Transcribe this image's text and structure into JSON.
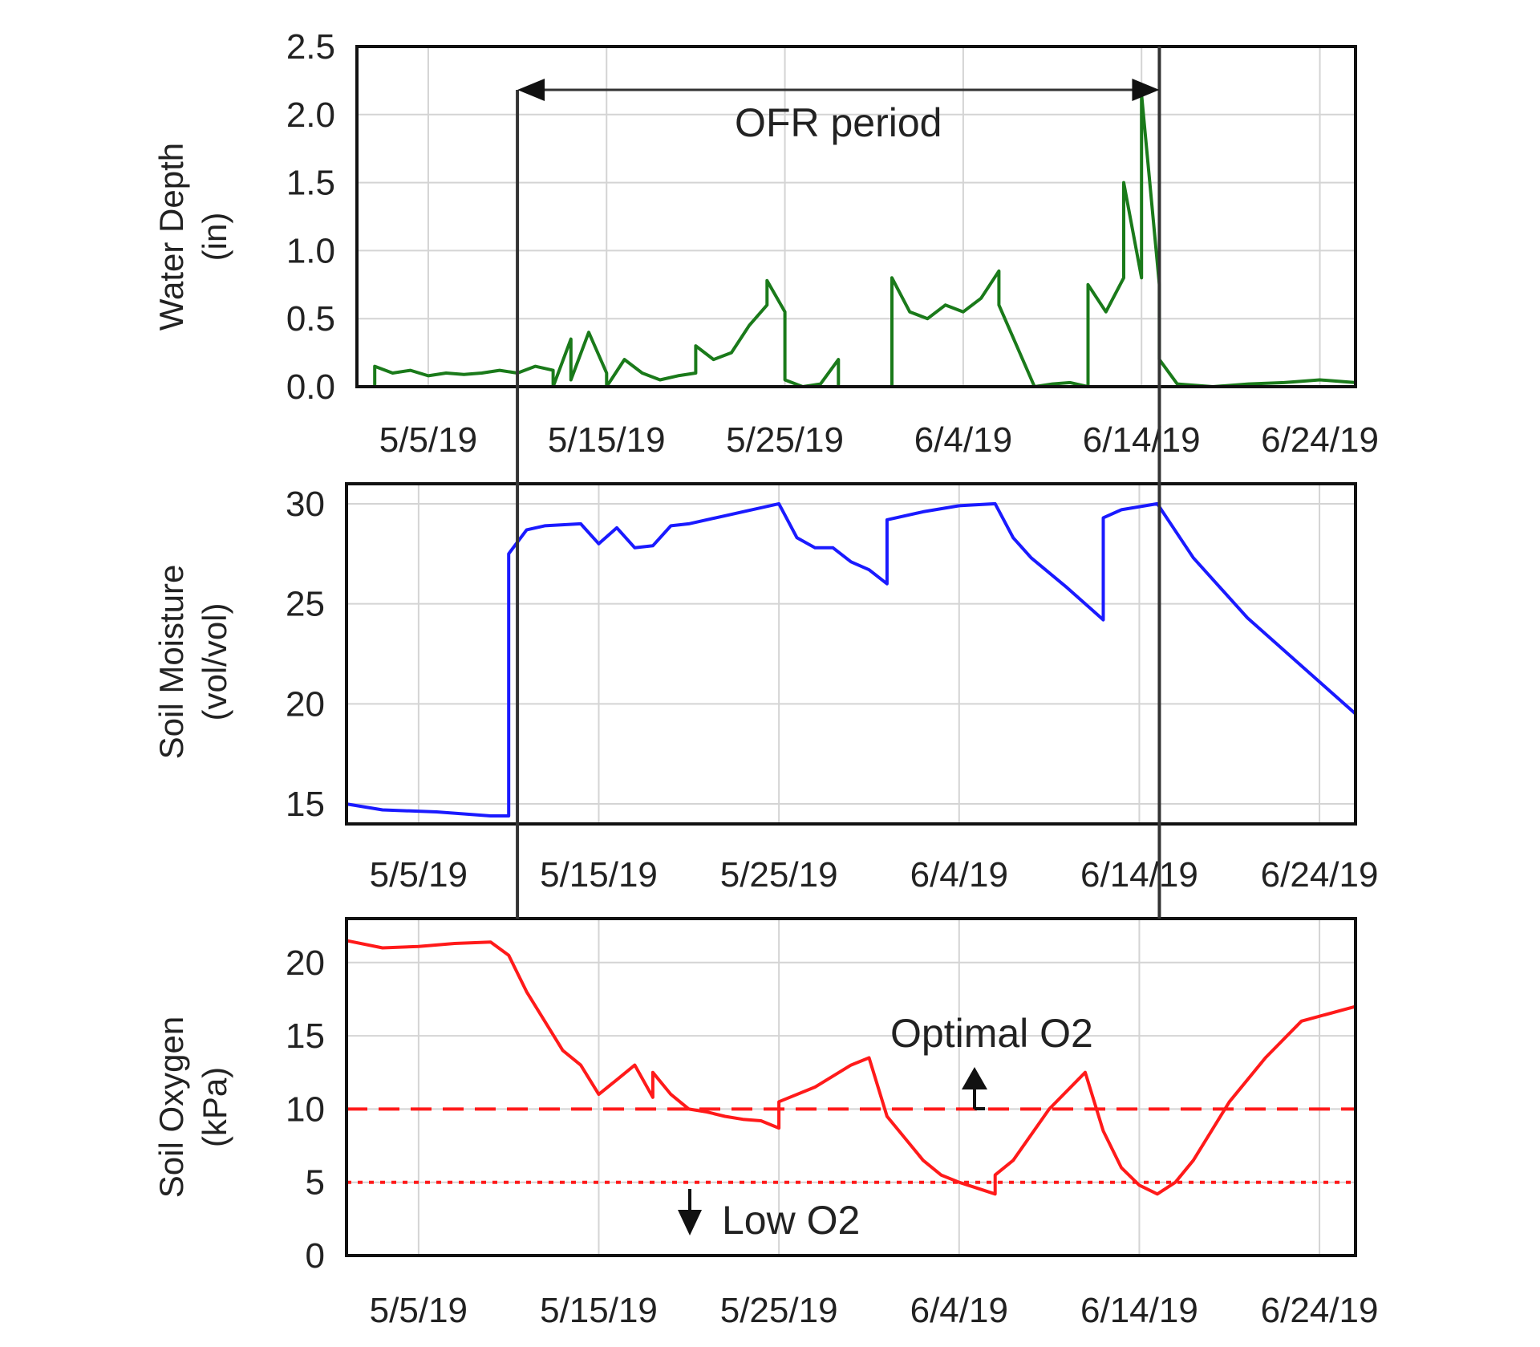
{
  "figure": {
    "x_tick_labels": [
      "5/5/19",
      "5/15/19",
      "5/25/19",
      "6/4/19",
      "6/14/19",
      "6/24/19"
    ],
    "ofr_label": "OFR period",
    "optimal_label": "Optimal O2",
    "low_label": "Low O2",
    "ofr_start": "2019-05-10",
    "ofr_end": "2019-06-15"
  },
  "chart_data": [
    {
      "type": "line",
      "ylabel_line1": "Water Depth",
      "ylabel_line2": "(in)",
      "ylim": [
        0,
        2.5
      ],
      "yticks": [
        0.0,
        0.5,
        1.0,
        1.5,
        2.0,
        2.5
      ],
      "ytick_labels": [
        "0.0",
        "0.5",
        "1.0",
        "1.5",
        "2.0",
        "2.5"
      ],
      "xlim": [
        "2019-05-01",
        "2019-06-26"
      ],
      "grid": true,
      "color": "#1a7a1a",
      "series": [
        {
          "x": [
            "2019-05-02",
            "2019-05-02",
            "2019-05-03",
            "2019-05-04",
            "2019-05-05",
            "2019-05-06",
            "2019-05-07",
            "2019-05-08",
            "2019-05-09",
            "2019-05-10",
            "2019-05-11",
            "2019-05-12",
            "2019-05-12",
            "2019-05-13",
            "2019-05-13",
            "2019-05-14",
            "2019-05-15",
            "2019-05-15",
            "2019-05-16",
            "2019-05-17",
            "2019-05-18",
            "2019-05-19",
            "2019-05-20",
            "2019-05-20",
            "2019-05-21",
            "2019-05-22",
            "2019-05-23",
            "2019-05-24",
            "2019-05-24",
            "2019-05-25",
            "2019-05-25",
            "2019-05-26",
            "2019-05-27",
            "2019-05-28",
            "2019-05-28",
            "2019-05-29",
            "2019-05-30",
            "2019-05-31",
            "2019-05-31",
            "2019-06-01",
            "2019-06-02",
            "2019-06-03",
            "2019-06-04",
            "2019-06-05",
            "2019-06-06",
            "2019-06-06",
            "2019-06-07",
            "2019-06-08",
            "2019-06-09",
            "2019-06-10",
            "2019-06-11",
            "2019-06-11",
            "2019-06-12",
            "2019-06-13",
            "2019-06-13",
            "2019-06-14",
            "2019-06-14",
            "2019-06-15",
            "2019-06-15",
            "2019-06-16",
            "2019-06-18",
            "2019-06-20",
            "2019-06-22",
            "2019-06-24",
            "2019-06-26"
          ],
          "y": [
            0.0,
            0.15,
            0.1,
            0.12,
            0.08,
            0.1,
            0.09,
            0.1,
            0.12,
            0.1,
            0.15,
            0.12,
            0.0,
            0.35,
            0.05,
            0.4,
            0.1,
            0.0,
            0.2,
            0.1,
            0.05,
            0.08,
            0.1,
            0.3,
            0.2,
            0.25,
            0.45,
            0.6,
            0.78,
            0.55,
            0.05,
            0.0,
            0.02,
            0.2,
            0.0,
            0.0,
            0.0,
            0.0,
            0.8,
            0.55,
            0.5,
            0.6,
            0.55,
            0.65,
            0.85,
            0.6,
            0.3,
            0.0,
            0.02,
            0.03,
            0.0,
            0.75,
            0.55,
            0.8,
            1.5,
            0.8,
            2.15,
            0.75,
            0.2,
            0.02,
            0.0,
            0.02,
            0.03,
            0.05,
            0.03
          ]
        }
      ]
    },
    {
      "type": "line",
      "ylabel_line1": "Soil Moisture",
      "ylabel_line2": "(vol/vol)",
      "ylim": [
        14,
        31
      ],
      "yticks": [
        15,
        20,
        25,
        30
      ],
      "ytick_labels": [
        "15",
        "20",
        "25",
        "30"
      ],
      "xlim": [
        "2019-05-01",
        "2019-06-26"
      ],
      "grid": true,
      "color": "#1a1aff",
      "series": [
        {
          "x": [
            "2019-05-01",
            "2019-05-03",
            "2019-05-06",
            "2019-05-09",
            "2019-05-10",
            "2019-05-10",
            "2019-05-11",
            "2019-05-12",
            "2019-05-14",
            "2019-05-15",
            "2019-05-16",
            "2019-05-17",
            "2019-05-18",
            "2019-05-19",
            "2019-05-20",
            "2019-05-22",
            "2019-05-24",
            "2019-05-25",
            "2019-05-26",
            "2019-05-27",
            "2019-05-28",
            "2019-05-29",
            "2019-05-30",
            "2019-05-31",
            "2019-05-31",
            "2019-06-02",
            "2019-06-04",
            "2019-06-06",
            "2019-06-07",
            "2019-06-08",
            "2019-06-10",
            "2019-06-12",
            "2019-06-12",
            "2019-06-13",
            "2019-06-15",
            "2019-06-17",
            "2019-06-20",
            "2019-06-23",
            "2019-06-26"
          ],
          "y": [
            15.0,
            14.7,
            14.6,
            14.4,
            14.4,
            27.5,
            28.7,
            28.9,
            29.0,
            28.0,
            28.8,
            27.8,
            27.9,
            28.9,
            29.0,
            29.4,
            29.8,
            30.0,
            28.3,
            27.8,
            27.8,
            27.1,
            26.7,
            26.0,
            29.2,
            29.6,
            29.9,
            30.0,
            28.3,
            27.3,
            25.8,
            24.2,
            29.3,
            29.7,
            30.0,
            27.3,
            24.3,
            21.9,
            19.5
          ]
        }
      ]
    },
    {
      "type": "line",
      "ylabel_line1": "Soil Oxygen",
      "ylabel_line2": "(kPa)",
      "ylim": [
        0,
        23
      ],
      "yticks": [
        0,
        5,
        10,
        15,
        20
      ],
      "ytick_labels": [
        "0",
        "5",
        "10",
        "15",
        "20"
      ],
      "xlim": [
        "2019-05-01",
        "2019-06-26"
      ],
      "grid": true,
      "color": "#ff1a1a",
      "thresholds": [
        {
          "value": 10,
          "style": "dashed"
        },
        {
          "value": 5,
          "style": "dotted"
        }
      ],
      "series": [
        {
          "x": [
            "2019-05-01",
            "2019-05-03",
            "2019-05-05",
            "2019-05-07",
            "2019-05-09",
            "2019-05-10",
            "2019-05-11",
            "2019-05-12",
            "2019-05-13",
            "2019-05-14",
            "2019-05-15",
            "2019-05-16",
            "2019-05-17",
            "2019-05-18",
            "2019-05-18",
            "2019-05-19",
            "2019-05-20",
            "2019-05-21",
            "2019-05-22",
            "2019-05-23",
            "2019-05-24",
            "2019-05-25",
            "2019-05-25",
            "2019-05-27",
            "2019-05-29",
            "2019-05-30",
            "2019-05-31",
            "2019-06-01",
            "2019-06-02",
            "2019-06-03",
            "2019-06-04",
            "2019-06-06",
            "2019-06-06",
            "2019-06-07",
            "2019-06-09",
            "2019-06-11",
            "2019-06-12",
            "2019-06-13",
            "2019-06-14",
            "2019-06-15",
            "2019-06-16",
            "2019-06-17",
            "2019-06-19",
            "2019-06-21",
            "2019-06-23",
            "2019-06-26"
          ],
          "y": [
            21.5,
            21.0,
            21.1,
            21.3,
            21.4,
            20.5,
            18.0,
            16.0,
            14.0,
            13.0,
            11.0,
            12.0,
            13.0,
            10.8,
            12.5,
            11.0,
            10.0,
            9.8,
            9.5,
            9.3,
            9.2,
            8.7,
            10.5,
            11.5,
            13.0,
            13.5,
            9.5,
            8.0,
            6.5,
            5.5,
            5.0,
            4.2,
            5.5,
            6.5,
            10.0,
            12.5,
            8.5,
            6.0,
            4.8,
            4.2,
            5.0,
            6.5,
            10.5,
            13.5,
            16.0,
            17.0
          ]
        }
      ]
    }
  ]
}
